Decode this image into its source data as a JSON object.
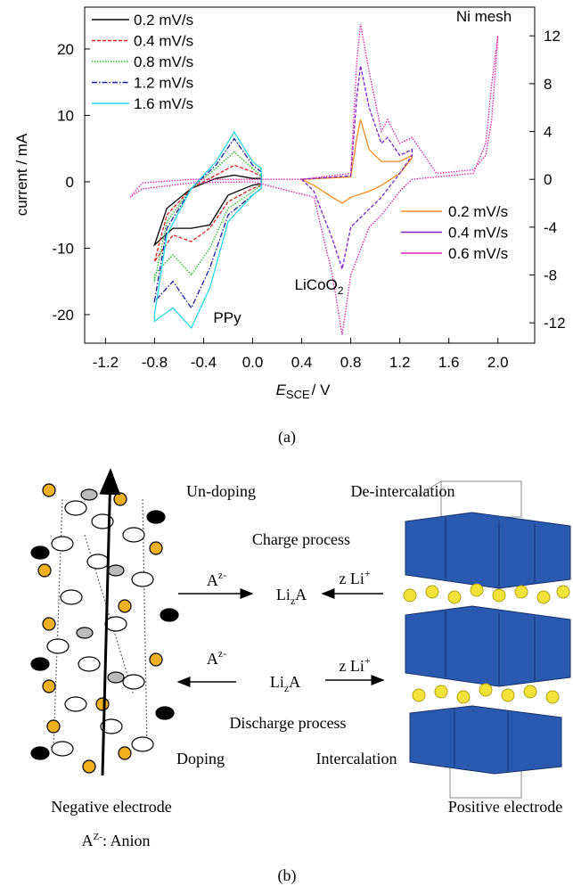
{
  "chart_data": {
    "type": "line",
    "xlabel": {
      "italic": "E",
      "sub": "SCE",
      "rest": "/ V"
    },
    "ylabel": "current / mA",
    "xlim": [
      -1.37,
      2.3
    ],
    "ylim": [
      -24.3,
      26.3
    ],
    "y2lim": [
      -13.7,
      14.4
    ],
    "xticks": [
      -1.2,
      -0.8,
      -0.4,
      {
        "value": 0,
        "label": "0.0"
      },
      0.4,
      0.8,
      1.2,
      1.6,
      {
        "value": 2,
        "label": "2.0"
      }
    ],
    "yticks": [
      -20,
      -10,
      0,
      10,
      20
    ],
    "y2ticks": [
      -12,
      -8,
      -4,
      0,
      4,
      8,
      12
    ],
    "annotations": {
      "ppy": "PPy",
      "ni": "Ni mesh",
      "licoo2": {
        "base": "LiCoO",
        "sub": "2"
      }
    },
    "caption": "(a)",
    "series": [
      {
        "name": "0.2 mV/s",
        "color": "#000000",
        "linestyle": "solid",
        "legend": "left",
        "x": [
          -0.8,
          -0.7,
          -0.5,
          -0.3,
          -0.15,
          0,
          0.07,
          0.07,
          0,
          -0.2,
          -0.35,
          -0.5,
          -0.65,
          -0.8
        ],
        "values": [
          -9.5,
          -4,
          -1,
          0.5,
          1,
          0.5,
          0.5,
          -0.3,
          -0.5,
          -2,
          -6.5,
          -7,
          -7,
          -9.5
        ]
      },
      {
        "name": "0.4 mV/s",
        "color": "#e0201b",
        "linestyle": "dashed",
        "legend": "left",
        "x": [
          -0.8,
          -0.7,
          -0.5,
          -0.3,
          -0.15,
          0,
          0.07,
          0.07,
          0,
          -0.2,
          -0.35,
          -0.5,
          -0.65,
          -0.8
        ],
        "values": [
          -12,
          -5,
          -1,
          1,
          2.5,
          1.5,
          0.8,
          -0.5,
          -1,
          -3,
          -7,
          -9,
          -8,
          -12
        ]
      },
      {
        "name": "0.8 mV/s",
        "color": "#22c022",
        "linestyle": "dotted",
        "legend": "left",
        "x": [
          -0.8,
          -0.7,
          -0.5,
          -0.3,
          -0.15,
          0,
          0.07,
          0.07,
          0,
          -0.2,
          -0.35,
          -0.5,
          -0.65,
          -0.8
        ],
        "values": [
          -15,
          -6,
          -1,
          2,
          4.5,
          2,
          1,
          -0.5,
          -1.5,
          -4,
          -10,
          -14,
          -11,
          -14
        ]
      },
      {
        "name": "1.2 mV/s",
        "color": "#1a1aa0",
        "linestyle": "dashdot",
        "legend": "left",
        "x": [
          -0.8,
          -0.7,
          -0.5,
          -0.3,
          -0.15,
          0,
          0.07,
          0.07,
          0,
          -0.2,
          -0.35,
          -0.5,
          -0.65,
          -0.8
        ],
        "values": [
          -18,
          -7,
          -1,
          2.5,
          6.5,
          2.5,
          1.5,
          -1,
          -2,
          -5,
          -13,
          -19,
          -15,
          -18
        ]
      },
      {
        "name": "1.6 mV/s",
        "color": "#22d8e8",
        "linestyle": "solid",
        "legend": "left",
        "x": [
          -0.8,
          -0.7,
          -0.5,
          -0.3,
          -0.15,
          0,
          0.07,
          0.07,
          0,
          -0.2,
          -0.35,
          -0.5,
          -0.65,
          -0.8
        ],
        "values": [
          -20,
          -8,
          -1,
          3,
          7.5,
          3,
          2,
          -1,
          -2,
          -6,
          -16,
          -22,
          -19,
          -21
        ]
      },
      {
        "name": "0.2 mV/s",
        "color": "#f28a1c",
        "linestyle": "solid",
        "legend": "right",
        "axis": "y2",
        "x": [
          0.4,
          0.8,
          0.85,
          0.88,
          0.95,
          1.05,
          1.1,
          1.2,
          1.3,
          1.3,
          1.2,
          1.05,
          0.95,
          0.8,
          0.73,
          0.65,
          0.5,
          0.4
        ],
        "values": [
          0,
          0.2,
          3.5,
          5,
          2.5,
          1.5,
          1.5,
          1.5,
          2,
          1.8,
          0.5,
          -0.5,
          -1,
          -1.5,
          -2,
          -1.5,
          -0.5,
          0
        ]
      },
      {
        "name": "0.4 mV/s",
        "color": "#7a22c8",
        "linestyle": "dashed",
        "legend": "right",
        "axis": "y2",
        "x": [
          0.4,
          0.8,
          0.85,
          0.88,
          0.95,
          1.05,
          1.1,
          1.2,
          1.3,
          1.3,
          1.2,
          1.05,
          0.95,
          0.8,
          0.73,
          0.65,
          0.5,
          0.4
        ],
        "values": [
          0,
          0.3,
          7,
          9.5,
          6,
          3,
          3.5,
          2,
          2.5,
          2,
          0.5,
          -1.5,
          -2.5,
          -4,
          -7.5,
          -5,
          -1,
          0
        ]
      },
      {
        "name": "0.6 mV/s",
        "color": "#e020b0",
        "linestyle": "dotted",
        "legend": "right",
        "axis": "y2",
        "x": [
          -1.0,
          -0.9,
          -0.5,
          0,
          0.4,
          0.8,
          0.85,
          0.88,
          0.95,
          1.05,
          1.1,
          1.2,
          1.3,
          1.5,
          1.8,
          1.9,
          1.95,
          2.0,
          1.95,
          1.9,
          1.8,
          1.5,
          1.3,
          1.2,
          1.05,
          0.95,
          0.8,
          0.73,
          0.65,
          0.5,
          0,
          -0.5,
          -0.9,
          -1.0
        ],
        "values": [
          -1.5,
          -0.3,
          0,
          0,
          0,
          0.5,
          10,
          13,
          9,
          4,
          5,
          3,
          3.5,
          0.5,
          0.8,
          2,
          5,
          12,
          8,
          3,
          0.5,
          0.2,
          0,
          -1,
          -3,
          -4,
          -8,
          -13,
          -8,
          -1.5,
          -0.2,
          -0.3,
          -0.8,
          -1.5
        ]
      }
    ]
  },
  "diagram": {
    "undoping": "Un-doping",
    "deintercalation": "De-intercalation",
    "charge": {
      "title": "Charge process",
      "anion": {
        "base": "A",
        "sup": "z-"
      },
      "salt": {
        "base": "Li",
        "sub": "z",
        "rest": "A"
      },
      "li": {
        "base": "z Li",
        "sup": "+"
      }
    },
    "discharge": {
      "title": "Discharge process",
      "anion": {
        "base": "A",
        "sup": "z-"
      },
      "salt": {
        "base": "Li",
        "sub": "z",
        "rest": "A"
      },
      "li": {
        "base": "z Li",
        "sup": "+"
      }
    },
    "doping": "Doping",
    "intercalation": "Intercalation",
    "negative": "Negative electrode",
    "positive": "Positive electrode",
    "note": {
      "base": "A",
      "sup": "Z-",
      "rest": ": Anion"
    },
    "caption": "(b)"
  }
}
